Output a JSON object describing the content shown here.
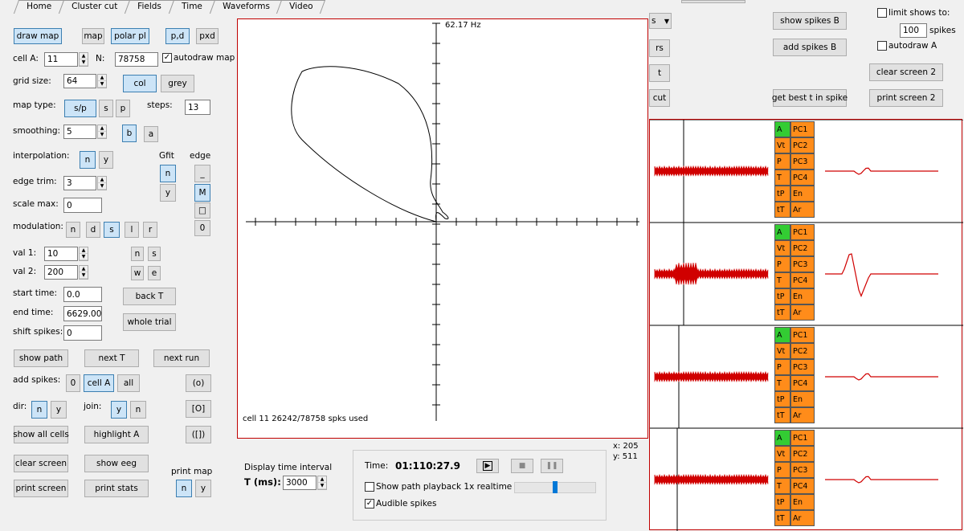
{
  "tabs": [
    "Home",
    "Cluster cut",
    "Fields",
    "Time",
    "Waveforms",
    "Video"
  ],
  "buttons": {
    "draw_map": "draw map",
    "map": "map",
    "polar": "polar pl",
    "pd": "p,d",
    "pxd": "pxd",
    "col": "col",
    "grey": "grey",
    "sp": "s/p",
    "s": "s",
    "p": "p",
    "b": "b",
    "a": "a",
    "interp_n": "n",
    "interp_y": "y",
    "gfit_n": "n",
    "gfit_y": "y",
    "edge_dash": "_",
    "edge_m": "M",
    "edge_sq": "□",
    "edge_circ": "0",
    "mod_n": "n",
    "mod_d": "d",
    "mod_s": "s",
    "mod_l": "l",
    "mod_r": "r",
    "ns_n": "n",
    "ns_s": "s",
    "we_w": "w",
    "we_e": "e",
    "back_t": "back T",
    "whole_trial": "whole trial",
    "show_path": "show path",
    "next_t": "next T",
    "next_run": "next run",
    "zero": "0",
    "cell_a": "cell A",
    "all": "all",
    "paren_o": "(o)",
    "bracket_o": "[O]",
    "brace": "([])",
    "dir_n": "n",
    "dir_y": "y",
    "join_y": "y",
    "join_n": "n",
    "show_all_cells": "show all cells",
    "highlight_a": "highlight A",
    "clear_screen": "clear screen",
    "show_eeg": "show eeg",
    "print_screen": "print screen",
    "print_stats": "print stats",
    "pm_n": "n",
    "pm_y": "y",
    "show_spikes_b": "show spikes B",
    "add_spikes_b": "add spikes B",
    "clear_screen_2": "clear screen 2",
    "get_best_t": "get best t in spike",
    "print_screen_2": "print screen 2",
    "trunc_rs": "rs",
    "trunc_t": "t",
    "trunc_cut": "cut"
  },
  "labels": {
    "cell_a": "cell A:",
    "n": "N:",
    "grid_size": "grid size:",
    "map_type": "map type:",
    "steps": "steps:",
    "smoothing": "smoothing:",
    "interpolation": "interpolation:",
    "gfit": "Gfit",
    "edge": "edge",
    "edge_trim": "edge trim:",
    "scale_max": "scale max:",
    "modulation": "modulation:",
    "val1": "val 1:",
    "val2": "val 2:",
    "start_time": "start time:",
    "end_time": "end time:",
    "shift_spikes": "shift spikes:",
    "add_spikes": "add spikes:",
    "dir": "dir:",
    "join": "join:",
    "print_map": "print map",
    "limit_shows": "limit shows to:",
    "spikes": "spikes",
    "display_time": "Display time interval",
    "t_ms": "T (ms):",
    "time": "Time:",
    "time_val": "01:110:27.9",
    "coord_x": "x: 205",
    "coord_y": "y: 511"
  },
  "inputs": {
    "cell_a": "11",
    "n": "78758",
    "grid_size": "64",
    "steps": "13",
    "smoothing": "5",
    "edge_trim": "3",
    "scale_max": "0",
    "val1": "10",
    "val2": "200",
    "start_time": "0.0",
    "end_time": "6629.00",
    "shift_spikes": "0",
    "limit": "100",
    "t_ms": "3000"
  },
  "checks": {
    "autodraw_map": "autodraw map",
    "limit_shows": "limit shows to:",
    "autodraw_a": "autodraw A",
    "show_path_playback": "Show path playback 1x realtime",
    "audible": "Audible spikes"
  },
  "plot": {
    "freq": "62.17 Hz",
    "caption": "cell 11 26242/78758 spks used"
  },
  "pc_rows": [
    [
      "A",
      "PC1"
    ],
    [
      "Vt",
      "PC2"
    ],
    [
      "P",
      "PC3"
    ],
    [
      "T",
      "PC4"
    ],
    [
      "tP",
      "En"
    ],
    [
      "tT",
      "Ar"
    ]
  ],
  "colors": {
    "waveform": "#d00000",
    "green": "#33cc33",
    "orange": "#ff8c1a",
    "plot_border": "#c00000"
  }
}
